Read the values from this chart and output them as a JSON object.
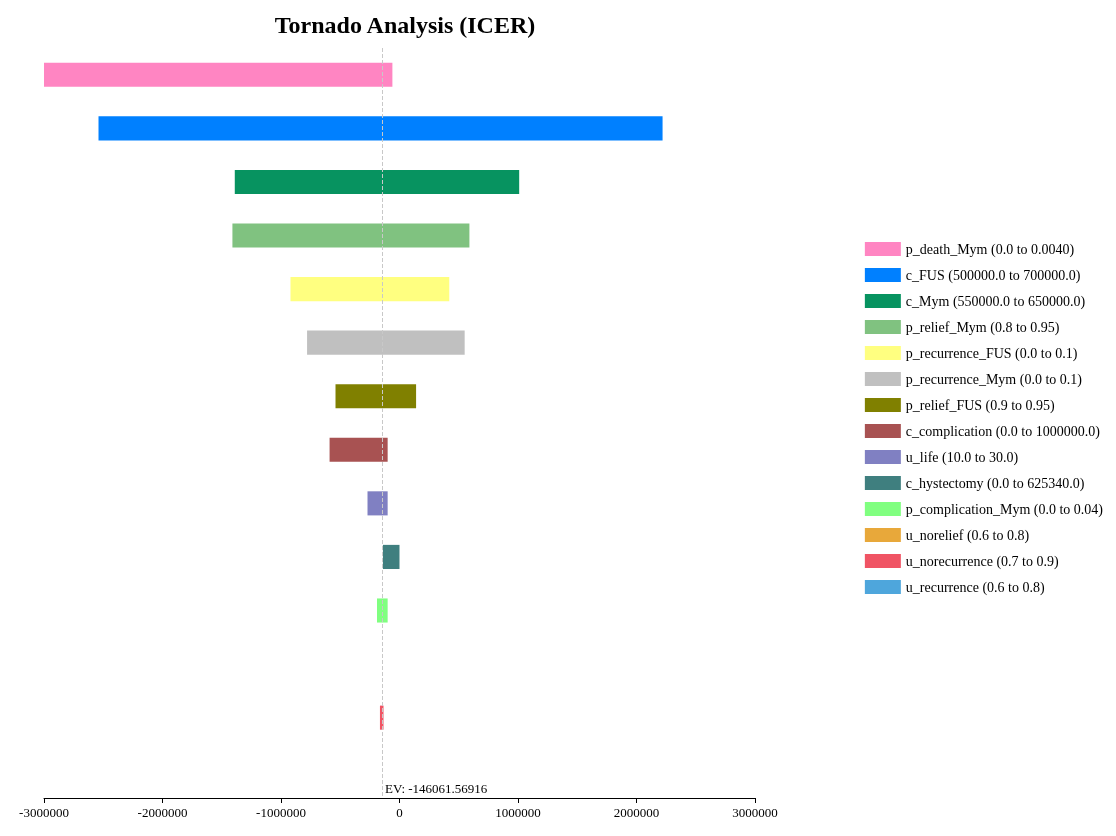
{
  "chart_data": {
    "type": "bar",
    "title": "Tornado Analysis (ICER)",
    "orientation": "horizontal",
    "categories": [
      null,
      null,
      null,
      null,
      null,
      null,
      null,
      null,
      null,
      null,
      null,
      null,
      null,
      null
    ],
    "series": [
      {
        "name": "p_death_Mym (0.0 to 0.0040)",
        "color": "#ff85c2",
        "base": [
          -3000000,
          null,
          null,
          null,
          null,
          null,
          null,
          null,
          null,
          null,
          null,
          null,
          null,
          null
        ],
        "values": [
          2940000,
          null,
          null,
          null,
          null,
          null,
          null,
          null,
          null,
          null,
          null,
          null,
          null,
          null
        ]
      },
      {
        "name": "c_FUS (500000.0 to 700000.0)",
        "color": "#0080ff",
        "base": [
          null,
          -2540000,
          null,
          null,
          null,
          null,
          null,
          null,
          null,
          null,
          null,
          null,
          null,
          null
        ],
        "values": [
          null,
          4760000,
          null,
          null,
          null,
          null,
          null,
          null,
          null,
          null,
          null,
          null,
          null,
          null
        ]
      },
      {
        "name": "c_Mym (550000.0 to 650000.0)",
        "color": "#079360",
        "base": [
          null,
          null,
          -1390000,
          null,
          null,
          null,
          null,
          null,
          null,
          null,
          null,
          null,
          null,
          null
        ],
        "values": [
          null,
          null,
          2400000,
          null,
          null,
          null,
          null,
          null,
          null,
          null,
          null,
          null,
          null,
          null
        ]
      },
      {
        "name": "p_relief_Mym (0.8 to 0.95)",
        "color": "#80c280",
        "base": [
          null,
          null,
          null,
          -1410000,
          null,
          null,
          null,
          null,
          null,
          null,
          null,
          null,
          null,
          null
        ],
        "values": [
          null,
          null,
          null,
          2000000,
          null,
          null,
          null,
          null,
          null,
          null,
          null,
          null,
          null,
          null
        ]
      },
      {
        "name": "p_recurrence_FUS (0.0 to 0.1)",
        "color": "#ffff80",
        "base": [
          null,
          null,
          null,
          null,
          -920000,
          null,
          null,
          null,
          null,
          null,
          null,
          null,
          null,
          null
        ],
        "values": [
          null,
          null,
          null,
          null,
          1340000,
          null,
          null,
          null,
          null,
          null,
          null,
          null,
          null,
          null
        ]
      },
      {
        "name": "p_recurrence_Mym (0.0 to 0.1)",
        "color": "#c0c0c0",
        "base": [
          null,
          null,
          null,
          null,
          null,
          -780000,
          null,
          null,
          null,
          null,
          null,
          null,
          null,
          null
        ],
        "values": [
          null,
          null,
          null,
          null,
          null,
          1330000,
          null,
          null,
          null,
          null,
          null,
          null,
          null,
          null
        ]
      },
      {
        "name": "p_relief_FUS (0.9 to 0.95)",
        "color": "#808000",
        "base": [
          null,
          null,
          null,
          null,
          null,
          null,
          -540000,
          null,
          null,
          null,
          null,
          null,
          null,
          null
        ],
        "values": [
          null,
          null,
          null,
          null,
          null,
          null,
          680000,
          null,
          null,
          null,
          null,
          null,
          null,
          null
        ]
      },
      {
        "name": "c_complication (0.0 to 1000000.0)",
        "color": "#a85252",
        "base": [
          null,
          null,
          null,
          null,
          null,
          null,
          null,
          -590000,
          null,
          null,
          null,
          null,
          null,
          null
        ],
        "values": [
          null,
          null,
          null,
          null,
          null,
          null,
          null,
          490000,
          null,
          null,
          null,
          null,
          null,
          null
        ]
      },
      {
        "name": "u_life (10.0 to 30.0)",
        "color": "#8080c2",
        "base": [
          null,
          null,
          null,
          null,
          null,
          null,
          null,
          null,
          -270000,
          null,
          null,
          null,
          null,
          null
        ],
        "values": [
          null,
          null,
          null,
          null,
          null,
          null,
          null,
          null,
          170000,
          null,
          null,
          null,
          null,
          null
        ]
      },
      {
        "name": "c_hystectomy (0.0 to 625340.0)",
        "color": "#3f7f7f",
        "base": [
          null,
          null,
          null,
          null,
          null,
          null,
          null,
          null,
          null,
          -140000,
          null,
          null,
          null,
          null
        ],
        "values": [
          null,
          null,
          null,
          null,
          null,
          null,
          null,
          null,
          null,
          140000,
          null,
          null,
          null,
          null
        ]
      },
      {
        "name": "p_complication_Mym (0.0 to 0.04)",
        "color": "#80ff80",
        "base": [
          null,
          null,
          null,
          null,
          null,
          null,
          null,
          null,
          null,
          null,
          -190000,
          null,
          null,
          null
        ],
        "values": [
          null,
          null,
          null,
          null,
          null,
          null,
          null,
          null,
          null,
          null,
          90000,
          null,
          null,
          null
        ]
      },
      {
        "name": "u_norelief (0.6 to 0.8)",
        "color": "#e8a83a",
        "base": [
          null,
          null,
          null,
          null,
          null,
          null,
          null,
          null,
          null,
          null,
          null,
          null,
          null,
          null
        ],
        "values": [
          null,
          null,
          null,
          null,
          null,
          null,
          null,
          null,
          null,
          null,
          null,
          null,
          null,
          null
        ]
      },
      {
        "name": "u_norecurrence (0.7 to 0.9)",
        "color": "#f05464",
        "base": [
          null,
          null,
          null,
          null,
          null,
          null,
          null,
          null,
          null,
          null,
          null,
          null,
          -165000,
          null
        ],
        "values": [
          null,
          null,
          null,
          null,
          null,
          null,
          null,
          null,
          null,
          null,
          null,
          null,
          30000,
          null
        ]
      },
      {
        "name": "u_recurrence (0.6 to 0.8)",
        "color": "#4ea6dc",
        "base": [
          null,
          null,
          null,
          null,
          null,
          null,
          null,
          null,
          null,
          null,
          null,
          null,
          null,
          null
        ],
        "values": [
          null,
          null,
          null,
          null,
          null,
          null,
          null,
          null,
          null,
          null,
          null,
          null,
          null,
          null
        ]
      }
    ],
    "xlim": [
      -3000000,
      3000000
    ],
    "xticks": [
      -3000000,
      -2000000,
      -1000000,
      0,
      1000000,
      2000000,
      3000000
    ],
    "ref_lines": [
      {
        "axis": "x",
        "value": -146061.56916,
        "label": "EV: -146061.56916",
        "color": "#c8c8c8",
        "line_style": "dashed"
      }
    ],
    "legend": "right",
    "grid": false
  }
}
